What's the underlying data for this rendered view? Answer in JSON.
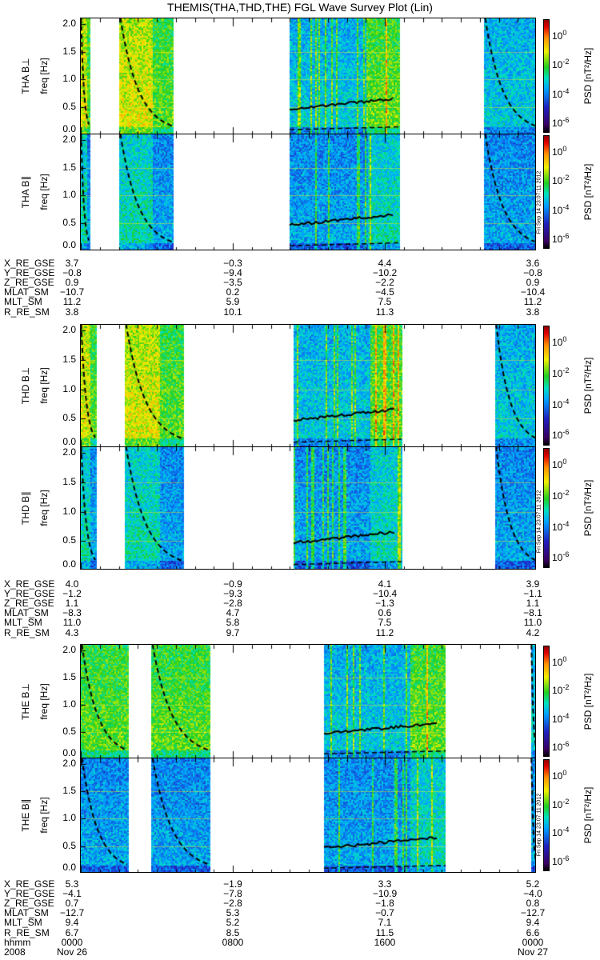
{
  "title": "THEMIS(THA,THD,THE) FGL Wave Survey Plot (Lin)",
  "stamp": "Fri Sep 14 23:07:11 2012",
  "chart_data": {
    "type": "heatmap",
    "title": "THEMIS(THA,THD,THE) FGL Wave Survey Plot (Lin)",
    "xlabel": "hhmm",
    "xlim_hours": [
      0,
      24
    ],
    "ylim": [
      0,
      2.0
    ],
    "yticks": [
      "0.0",
      "0.5",
      "1.0",
      "1.5",
      "2.0"
    ],
    "ylabel": "freq [Hz]",
    "colorbar": {
      "label": "PSD [nT²/Hz]",
      "scale": "log",
      "ticks": [
        "10",
        "10",
        "10",
        "10"
      ],
      "exponents": [
        "0",
        "-2",
        "-4",
        "-6"
      ]
    },
    "probes": [
      {
        "name": "THA",
        "panels": [
          {
            "label": "THA B⊥"
          },
          {
            "label": "THA B∥"
          }
        ],
        "coverage_hours": [
          [
            0,
            0.45
          ],
          [
            2.0,
            4.9
          ],
          [
            11.0,
            16.8
          ],
          [
            21.2,
            24
          ]
        ],
        "ephemeris": {
          "rows": [
            {
              "label": "X_RE_GSE",
              "values": [
                "3.7",
                "−0.3",
                "4.4",
                "3.6"
              ]
            },
            {
              "label": "Y_RE_GSE",
              "values": [
                "−0.8",
                "−9.4",
                "−10.2",
                "−0.8"
              ]
            },
            {
              "label": "Z_RE_GSE",
              "values": [
                "0.9",
                "−3.5",
                "−2.2",
                "0.9"
              ]
            },
            {
              "label": "MLAT_SM",
              "values": [
                "−10.7",
                "0.2",
                "−4.5",
                "−10.4"
              ]
            },
            {
              "label": "MLT_SM",
              "values": [
                "11.2",
                "5.9",
                "7.5",
                "11.2"
              ]
            },
            {
              "label": "R_RE_SM",
              "values": [
                "3.8",
                "10.1",
                "11.3",
                "3.8"
              ]
            }
          ]
        }
      },
      {
        "name": "THD",
        "panels": [
          {
            "label": "THD B⊥"
          },
          {
            "label": "THD B∥"
          }
        ],
        "coverage_hours": [
          [
            0,
            0.8
          ],
          [
            2.3,
            5.4
          ],
          [
            11.2,
            16.9
          ],
          [
            21.8,
            24
          ]
        ],
        "ephemeris": {
          "rows": [
            {
              "label": "X_RE_GSE",
              "values": [
                "4.0",
                "−0.9",
                "4.1",
                "3.9"
              ]
            },
            {
              "label": "Y_RE_GSE",
              "values": [
                "−1.2",
                "−9.3",
                "−10.4",
                "−1.1"
              ]
            },
            {
              "label": "Z_RE_GSE",
              "values": [
                "1.1",
                "−2.8",
                "−1.3",
                "1.1"
              ]
            },
            {
              "label": "MLAT_SM",
              "values": [
                "−8.3",
                "4.7",
                "0.6",
                "−8.1"
              ]
            },
            {
              "label": "MLT_SM",
              "values": [
                "11.0",
                "5.8",
                "7.5",
                "11.0"
              ]
            },
            {
              "label": "R_RE_SM",
              "values": [
                "4.3",
                "9.7",
                "11.2",
                "4.2"
              ]
            }
          ]
        }
      },
      {
        "name": "THE",
        "panels": [
          {
            "label": "THE B⊥"
          },
          {
            "label": "THE B∥"
          }
        ],
        "coverage_hours": [
          [
            0,
            2.5
          ],
          [
            3.7,
            6.8
          ],
          [
            12.8,
            19.2
          ],
          [
            23.7,
            24
          ]
        ],
        "ephemeris": {
          "rows": [
            {
              "label": "X_RE_GSE",
              "values": [
                "5.3",
                "−1.9",
                "3.3",
                "5.2"
              ]
            },
            {
              "label": "Y_RE_GSE",
              "values": [
                "−4.1",
                "−7.8",
                "−10.9",
                "−4.0"
              ]
            },
            {
              "label": "Z_RE_GSE",
              "values": [
                "0.7",
                "−2.8",
                "−1.8",
                "0.8"
              ]
            },
            {
              "label": "MLAT_SM",
              "values": [
                "−12.7",
                "5.3",
                "−0.7",
                "−12.7"
              ]
            },
            {
              "label": "MLT_SM",
              "values": [
                "9.4",
                "5.2",
                "7.1",
                "9.4"
              ]
            },
            {
              "label": "R_RE_SM",
              "values": [
                "6.7",
                "8.5",
                "11.5",
                "6.6"
              ]
            },
            {
              "label": "hhmm",
              "values": [
                "0000",
                "0800",
                "1600",
                "0000"
              ]
            },
            {
              "label": "2008",
              "values": [
                "Nov 26",
                "",
                "",
                "Nov 27"
              ]
            }
          ]
        }
      }
    ]
  }
}
